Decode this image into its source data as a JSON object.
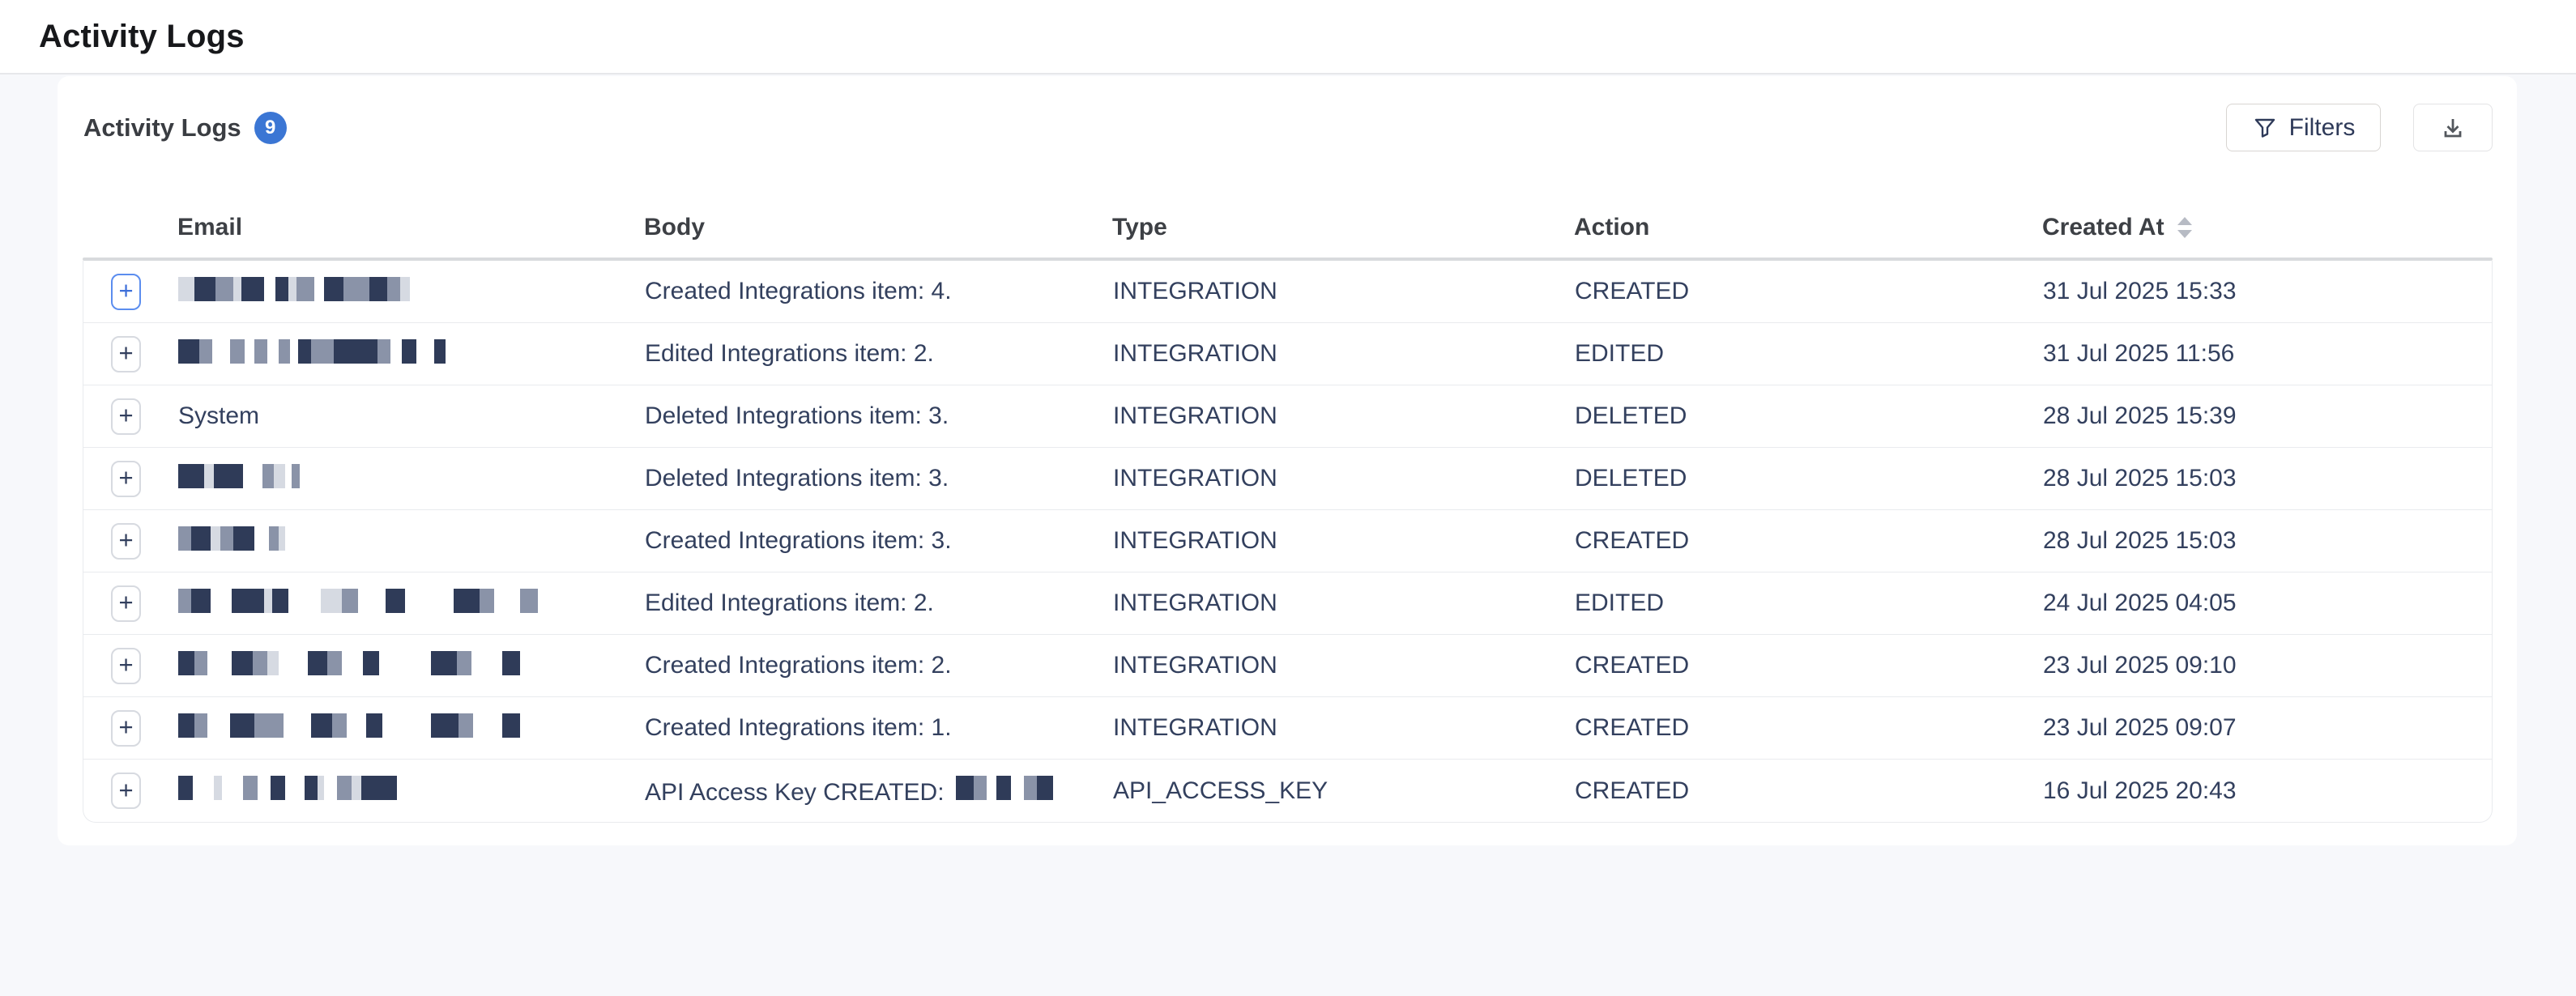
{
  "topbar": {
    "title": "Activity Logs"
  },
  "panel": {
    "title": "Activity Logs",
    "count": "9",
    "filters_label": "Filters",
    "expander_symbol": "+"
  },
  "colors": {
    "badge_blue": "#3b76d4",
    "focus_blue": "#5b8def",
    "row_text_navy": "#33405e",
    "redact_dark": "#2f3b58",
    "redact_mid": "#8a93a8",
    "redact_light": "#d6dae2"
  },
  "table": {
    "headers": {
      "email": "Email",
      "body": "Body",
      "type": "Type",
      "action": "Action",
      "created_at": "Created At"
    },
    "sortable_column": "Created At",
    "rows": [
      {
        "email": null,
        "email_redact": [
          [
            20,
            2
          ],
          [
            26,
            0
          ],
          [
            22,
            1
          ],
          [
            10,
            2
          ],
          [
            28,
            0
          ],
          [
            14,
            3
          ],
          [
            16,
            0
          ],
          [
            10,
            2
          ],
          [
            22,
            1
          ],
          [
            12,
            3
          ],
          [
            24,
            0
          ],
          [
            12,
            1
          ],
          [
            20,
            1
          ],
          [
            22,
            0
          ],
          [
            16,
            1
          ],
          [
            12,
            2
          ]
        ],
        "body": "Created Integrations item: 4.",
        "type": "INTEGRATION",
        "action": "CREATED",
        "created_at": "31 Jul 2025 15:33",
        "expander_focused": true
      },
      {
        "email": null,
        "email_redact": [
          [
            26,
            0
          ],
          [
            16,
            1
          ],
          [
            22,
            3
          ],
          [
            18,
            1
          ],
          [
            12,
            3
          ],
          [
            16,
            1
          ],
          [
            14,
            3
          ],
          [
            14,
            1
          ],
          [
            10,
            3
          ],
          [
            16,
            0
          ],
          [
            28,
            1
          ],
          [
            34,
            0
          ],
          [
            20,
            0
          ],
          [
            16,
            1
          ],
          [
            14,
            3
          ],
          [
            18,
            0
          ],
          [
            22,
            3
          ],
          [
            14,
            0
          ]
        ],
        "body": "Edited Integrations item: 2.",
        "type": "INTEGRATION",
        "action": "EDITED",
        "created_at": "31 Jul 2025 11:56",
        "expander_focused": false
      },
      {
        "email": "System",
        "email_redact": null,
        "body": "Deleted Integrations item: 3.",
        "type": "INTEGRATION",
        "action": "DELETED",
        "created_at": "28 Jul 2025 15:39",
        "expander_focused": false
      },
      {
        "email": null,
        "email_redact": [
          [
            32,
            0
          ],
          [
            12,
            2
          ],
          [
            36,
            0
          ],
          [
            24,
            3
          ],
          [
            14,
            1
          ],
          [
            14,
            2
          ],
          [
            8,
            3
          ],
          [
            10,
            1
          ]
        ],
        "body": "Deleted Integrations item: 3.",
        "type": "INTEGRATION",
        "action": "DELETED",
        "created_at": "28 Jul 2025 15:03",
        "expander_focused": false
      },
      {
        "email": null,
        "email_redact": [
          [
            16,
            1
          ],
          [
            24,
            0
          ],
          [
            12,
            2
          ],
          [
            16,
            1
          ],
          [
            26,
            0
          ],
          [
            18,
            3
          ],
          [
            12,
            1
          ],
          [
            8,
            2
          ]
        ],
        "body": "Created Integrations item: 3.",
        "type": "INTEGRATION",
        "action": "CREATED",
        "created_at": "28 Jul 2025 15:03",
        "expander_focused": false
      },
      {
        "email": null,
        "email_redact": [
          [
            16,
            1
          ],
          [
            24,
            0
          ],
          [
            26,
            3
          ],
          [
            40,
            0
          ],
          [
            10,
            2
          ],
          [
            20,
            0
          ],
          [
            40,
            3
          ],
          [
            26,
            2
          ],
          [
            20,
            1
          ],
          [
            34,
            3
          ],
          [
            24,
            0
          ],
          [
            60,
            3
          ],
          [
            32,
            0
          ],
          [
            18,
            1
          ],
          [
            32,
            3
          ],
          [
            22,
            1
          ]
        ],
        "body": "Edited Integrations item: 2.",
        "type": "INTEGRATION",
        "action": "EDITED",
        "created_at": "24 Jul 2025 04:05",
        "expander_focused": false
      },
      {
        "email": null,
        "email_redact": [
          [
            20,
            0
          ],
          [
            16,
            1
          ],
          [
            30,
            3
          ],
          [
            26,
            0
          ],
          [
            18,
            1
          ],
          [
            14,
            2
          ],
          [
            36,
            3
          ],
          [
            24,
            0
          ],
          [
            18,
            1
          ],
          [
            26,
            3
          ],
          [
            20,
            0
          ],
          [
            64,
            3
          ],
          [
            32,
            0
          ],
          [
            18,
            1
          ],
          [
            38,
            3
          ],
          [
            22,
            0
          ]
        ],
        "body": "Created Integrations item: 2.",
        "type": "INTEGRATION",
        "action": "CREATED",
        "created_at": "23 Jul 2025 09:10",
        "expander_focused": false
      },
      {
        "email": null,
        "email_redact": [
          [
            20,
            0
          ],
          [
            16,
            1
          ],
          [
            28,
            3
          ],
          [
            30,
            0
          ],
          [
            20,
            1
          ],
          [
            16,
            1
          ],
          [
            34,
            3
          ],
          [
            26,
            0
          ],
          [
            18,
            1
          ],
          [
            24,
            3
          ],
          [
            20,
            0
          ],
          [
            60,
            3
          ],
          [
            34,
            0
          ],
          [
            18,
            1
          ],
          [
            36,
            3
          ],
          [
            22,
            0
          ]
        ],
        "body": "Created Integrations item: 1.",
        "type": "INTEGRATION",
        "action": "CREATED",
        "created_at": "23 Jul 2025 09:07",
        "expander_focused": false
      },
      {
        "email": null,
        "email_redact": [
          [
            18,
            0
          ],
          [
            26,
            3
          ],
          [
            10,
            2
          ],
          [
            26,
            3
          ],
          [
            18,
            1
          ],
          [
            16,
            3
          ],
          [
            18,
            0
          ],
          [
            24,
            3
          ],
          [
            16,
            0
          ],
          [
            8,
            2
          ],
          [
            16,
            3
          ],
          [
            18,
            1
          ],
          [
            12,
            2
          ],
          [
            44,
            0
          ]
        ],
        "body": "API Access Key CREATED:",
        "body_redact": [
          [
            22,
            0
          ],
          [
            16,
            1
          ],
          [
            12,
            3
          ],
          [
            18,
            0
          ],
          [
            16,
            3
          ],
          [
            16,
            1
          ],
          [
            20,
            0
          ]
        ],
        "type": "API_ACCESS_KEY",
        "action": "CREATED",
        "created_at": "16 Jul 2025 20:43",
        "expander_focused": false
      }
    ]
  }
}
